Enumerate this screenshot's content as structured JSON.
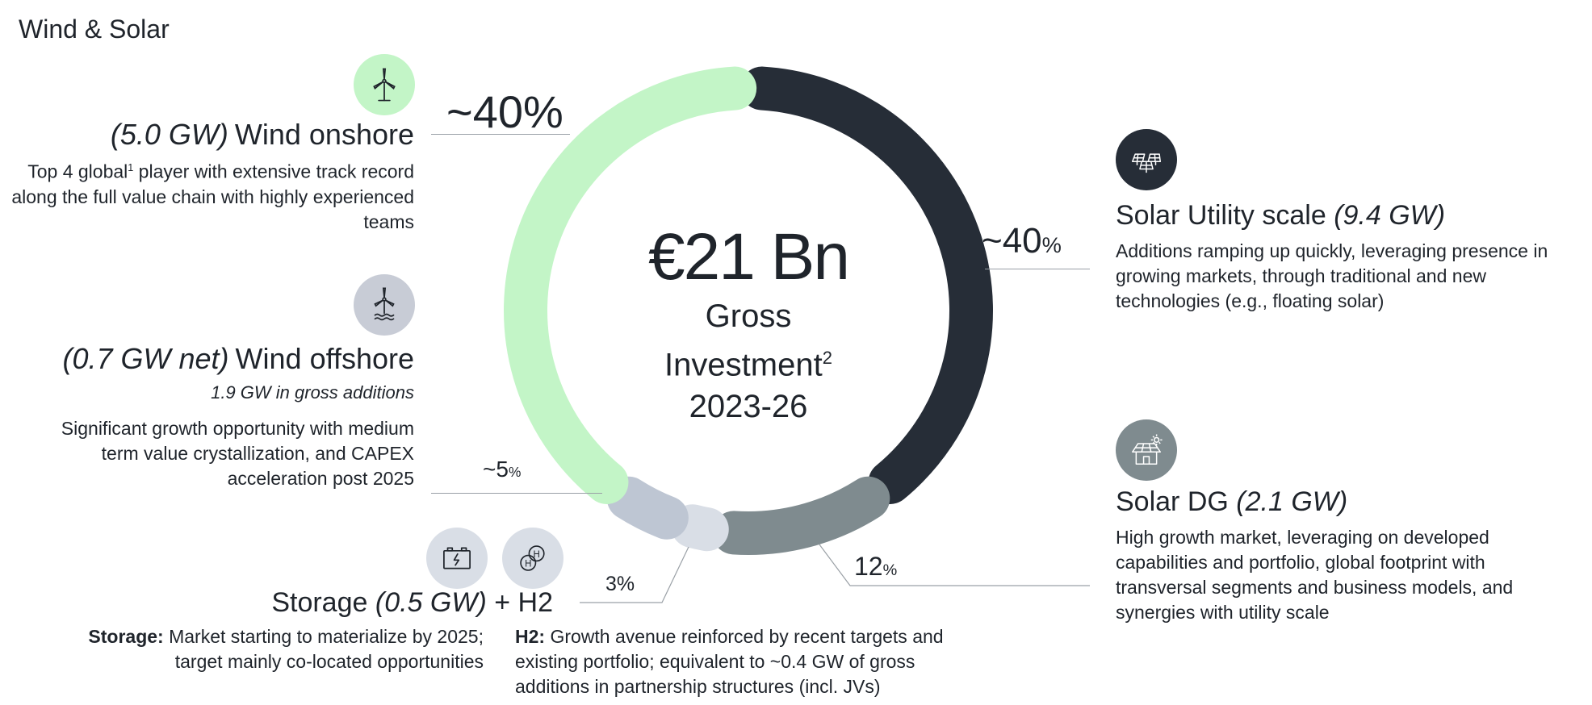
{
  "page_title": "Wind & Solar",
  "center": {
    "amount": "€21 Bn",
    "line1": "Gross",
    "line2": "Investment",
    "line2_sup": "2",
    "line3": "2023-26"
  },
  "segments": {
    "wind_onshore": {
      "capacity": "(5.0 GW)",
      "name": "Wind onshore",
      "desc_a": "Top 4 global",
      "desc_sup": "1",
      "desc_b": " player with extensive track record along the full value chain with highly experienced teams",
      "icon": "wind-turbine-icon"
    },
    "wind_offshore": {
      "capacity": "(0.7 GW net)",
      "name": "Wind offshore",
      "note": "1.9 GW in gross additions",
      "desc": "Significant growth opportunity with medium term value crystallization, and CAPEX acceleration post 2025",
      "icon": "offshore-turbine-icon"
    },
    "solar_utility": {
      "name": "Solar Utility scale",
      "capacity": "(9.4 GW)",
      "desc": "Additions ramping up quickly, leveraging presence in growing markets, through traditional and new technologies (e.g., floating solar)",
      "icon": "solar-panels-icon"
    },
    "solar_dg": {
      "name": "Solar DG",
      "capacity": "(2.1 GW)",
      "desc": "High growth market, leveraging on developed capabilities and portfolio, global footprint with transversal segments and business models, and synergies with utility scale",
      "icon": "house-solar-icon"
    },
    "storage_h2": {
      "name1": "Storage",
      "capacity": "(0.5 GW)",
      "name2": "+ H2",
      "storage_label": "Storage:",
      "storage_desc": "Market starting to materialize by 2025; target mainly co-located opportunities",
      "h2_label": "H2:",
      "h2_desc": "Growth avenue reinforced by recent targets and existing portfolio; equivalent to ~0.4 GW of gross additions in partnership structures (incl. JVs)",
      "icons": [
        "battery-icon",
        "hydrogen-icon"
      ]
    }
  },
  "labels": {
    "onshore_pct": "~40%",
    "utility_pct": "~40",
    "utility_pct_sign": "%",
    "offshore_pct": "~5",
    "offshore_pct_sign": "%",
    "storage_pct": "3%",
    "dg_pct": "12",
    "dg_pct_sign": "%"
  },
  "chart_data": {
    "type": "donut",
    "title": "",
    "total_label": "€21 Bn",
    "series": [
      {
        "name": "Solar Utility scale",
        "value": 40,
        "color": "#262d37"
      },
      {
        "name": "Solar DG",
        "value": 12,
        "color": "#7f8b8f"
      },
      {
        "name": "Storage + H2",
        "value": 3,
        "color": "#d9dee6"
      },
      {
        "name": "Wind offshore",
        "value": 5,
        "color": "#bec6d3"
      },
      {
        "name": "Wind onshore",
        "value": 40,
        "color": "#c3f5c7"
      }
    ],
    "colors": {
      "text": "#1f242b",
      "icon_green": "#c3f5c7",
      "icon_grey": "#c8ccd6",
      "icon_dark": "#262d37",
      "icon_mid": "#7f8b8f"
    }
  }
}
